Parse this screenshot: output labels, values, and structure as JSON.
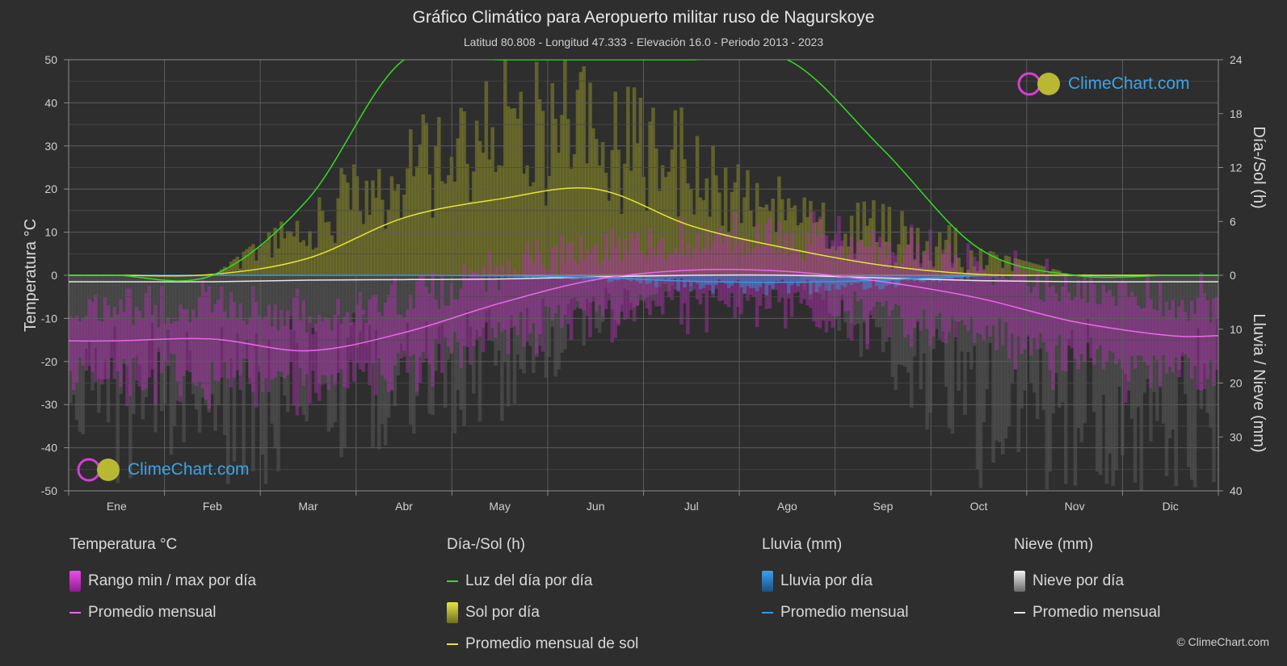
{
  "header": {
    "title": "Gráfico Climático para Aeropuerto militar ruso de Nagurskoye",
    "subtitle": "Latitud 80.808 - Longitud 47.333 - Elevación 16.0 - Periodo 2013 - 2023"
  },
  "logo": {
    "text": "ClimeChart.com"
  },
  "copyright": "© ClimeChart.com",
  "colors": {
    "background": "#2e2e2e",
    "daylight": "#33dd22",
    "sunshine_avg": "#e6e633",
    "sunshine_bars": "#8c8c2a",
    "temp_avg": "#ee66ee",
    "temp_range": "#b42fb4",
    "rain": "#3399dd",
    "snow_avg": "#e6e6e6",
    "snow_bars": "#5a5a5a"
  },
  "chart_data": {
    "type": "line",
    "categories": [
      "Ene",
      "Feb",
      "Mar",
      "Abr",
      "May",
      "Jun",
      "Jul",
      "Ago",
      "Sep",
      "Oct",
      "Nov",
      "Dic"
    ],
    "axes": {
      "left": {
        "label": "Temperatura °C",
        "range": [
          -50,
          50
        ],
        "ticks": [
          50,
          40,
          30,
          20,
          10,
          0,
          -10,
          -20,
          -30,
          -40,
          -50
        ]
      },
      "right_top": {
        "label": "Día-/Sol (h)",
        "range": [
          0,
          24
        ],
        "ticks": [
          24,
          18,
          12,
          6,
          0
        ]
      },
      "right_bottom": {
        "label": "Lluvia / Nieve (mm)",
        "range": [
          0,
          40
        ],
        "ticks": [
          10,
          20,
          30,
          40
        ]
      }
    },
    "grid": true,
    "series": [
      {
        "name": "Luz del día por día",
        "axis": "right_top",
        "values": [
          0,
          0,
          8.5,
          24,
          24,
          24,
          24,
          24,
          14,
          3,
          0,
          0
        ]
      },
      {
        "name": "Promedio mensual de sol",
        "axis": "right_top",
        "values": [
          0,
          0.1,
          1.9,
          6.4,
          8.5,
          9.6,
          5.5,
          3.0,
          1.1,
          0.1,
          0,
          0
        ]
      },
      {
        "name": "Promedio mensual",
        "metric": "temperature",
        "axis": "left",
        "values": [
          -15.2,
          -14.8,
          -17.5,
          -13.3,
          -6.5,
          -1.0,
          1.2,
          0.9,
          -1.5,
          -5.3,
          -10.8,
          -14.0
        ]
      },
      {
        "name": "Promedio mensual",
        "metric": "rain",
        "axis": "right_bottom",
        "values": [
          0,
          0,
          0,
          0,
          0.1,
          0.4,
          1.1,
          1.3,
          0.9,
          0.1,
          0,
          0
        ]
      },
      {
        "name": "Promedio mensual",
        "metric": "snow",
        "axis": "right_bottom",
        "values": [
          1.2,
          1.2,
          0.9,
          0.8,
          0.7,
          0.3,
          0,
          0,
          0.5,
          1.0,
          1.2,
          1.2
        ]
      }
    ]
  },
  "legend": {
    "groups": [
      {
        "heading": "Temperatura °C",
        "items": [
          {
            "label": "Rango min / max por día",
            "kind": "box",
            "color": "#cc33cc"
          },
          {
            "label": "Promedio mensual",
            "kind": "line",
            "color": "#ee66ee"
          }
        ]
      },
      {
        "heading": "Día-/Sol (h)",
        "items": [
          {
            "label": "Luz del día por día",
            "kind": "line",
            "color": "#33dd22"
          },
          {
            "label": "Sol por día",
            "kind": "box",
            "color": "#c8c83a"
          },
          {
            "label": "Promedio mensual de sol",
            "kind": "line",
            "color": "#e6e633"
          }
        ]
      },
      {
        "heading": "Lluvia (mm)",
        "items": [
          {
            "label": "Lluvia por día",
            "kind": "box",
            "color": "#2a86d6"
          },
          {
            "label": "Promedio mensual",
            "kind": "line",
            "color": "#3399dd"
          }
        ]
      },
      {
        "heading": "Nieve (mm)",
        "items": [
          {
            "label": "Nieve por día",
            "kind": "box",
            "color": "#d0d0d0"
          },
          {
            "label": "Promedio mensual",
            "kind": "line",
            "color": "#e6e6e6"
          }
        ]
      }
    ]
  }
}
